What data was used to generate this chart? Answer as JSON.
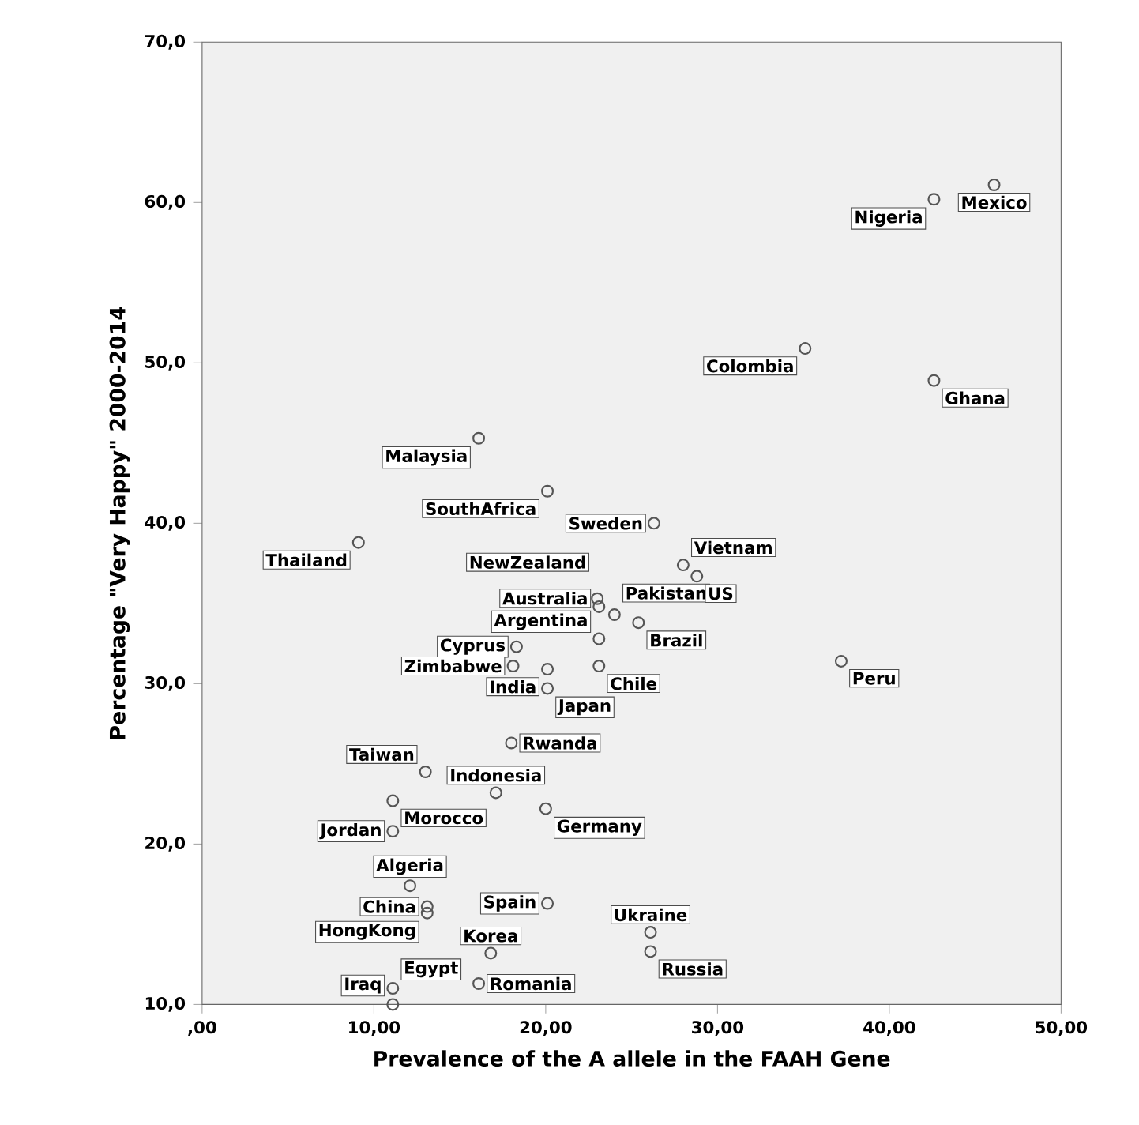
{
  "chart_data": {
    "type": "scatter",
    "xlabel": "Prevalence of the A allele in the FAAH Gene",
    "ylabel": "Percentage \"Very Happy\" 2000-2014",
    "xlim": [
      0,
      50
    ],
    "ylim": [
      10,
      70
    ],
    "xticks": [
      {
        "value": 0,
        "label": ",00"
      },
      {
        "value": 10,
        "label": "10,00"
      },
      {
        "value": 20,
        "label": "20,00"
      },
      {
        "value": 30,
        "label": "30,00"
      },
      {
        "value": 40,
        "label": "40,00"
      },
      {
        "value": 50,
        "label": "50,00"
      }
    ],
    "yticks": [
      {
        "value": 10,
        "label": "10,0"
      },
      {
        "value": 20,
        "label": "20,0"
      },
      {
        "value": 30,
        "label": "30,0"
      },
      {
        "value": 40,
        "label": "40,0"
      },
      {
        "value": 50,
        "label": "50,0"
      },
      {
        "value": 60,
        "label": "60,0"
      },
      {
        "value": 70,
        "label": "70,0"
      }
    ],
    "marker": "circle",
    "grid": false,
    "series": [
      {
        "color": "#555555",
        "x": [
          46.1,
          42.6,
          35.1,
          42.6,
          16.1,
          20.1,
          26.3,
          9.1,
          23.0,
          23.1,
          23.1,
          24.0,
          25.4,
          18.3,
          18.1,
          20.1,
          23.1,
          20.1,
          37.2,
          28.0,
          28.8,
          13.0,
          18.0,
          17.1,
          11.1,
          11.1,
          20.0,
          12.1,
          13.1,
          20.1,
          16.8,
          13.1,
          11.1,
          11.1,
          26.1,
          26.1,
          16.1
        ],
        "values": [
          61.1,
          60.2,
          50.9,
          48.9,
          45.3,
          42.0,
          40.0,
          38.8,
          35.3,
          34.8,
          32.8,
          34.3,
          33.8,
          32.3,
          31.1,
          30.9,
          31.1,
          29.7,
          31.4,
          37.4,
          36.7,
          24.5,
          26.3,
          23.2,
          22.7,
          20.8,
          22.2,
          17.4,
          16.1,
          16.3,
          13.2,
          15.7,
          11.0,
          10.0,
          14.5,
          13.3,
          11.3
        ]
      }
    ],
    "annotations": [
      {
        "text": "Mexico",
        "x": 46.1,
        "y": 61.1
      },
      {
        "text": "Nigeria",
        "x": 42.6,
        "y": 60.2
      },
      {
        "text": "Colombia",
        "x": 35.1,
        "y": 50.9
      },
      {
        "text": "Ghana",
        "x": 42.6,
        "y": 48.9
      },
      {
        "text": "Malaysia",
        "x": 16.1,
        "y": 45.3
      },
      {
        "text": "SouthAfrica",
        "x": 20.1,
        "y": 42.0
      },
      {
        "text": "Sweden",
        "x": 26.3,
        "y": 40.0
      },
      {
        "text": "Thailand",
        "x": 9.1,
        "y": 38.8
      },
      {
        "text": "NewZealand",
        "x": 23.0,
        "y": 35.3
      },
      {
        "text": "Australia",
        "x": 23.1,
        "y": 34.8
      },
      {
        "text": "Argentina",
        "x": 23.1,
        "y": 32.8
      },
      {
        "text": "Pakistan",
        "x": 24.0,
        "y": 34.3
      },
      {
        "text": "Brazil",
        "x": 25.4,
        "y": 33.8
      },
      {
        "text": "Cyprus",
        "x": 18.3,
        "y": 32.3
      },
      {
        "text": "Zimbabwe",
        "x": 18.1,
        "y": 31.1
      },
      {
        "text": "India",
        "x": 20.1,
        "y": 30.9
      },
      {
        "text": "Chile",
        "x": 23.1,
        "y": 31.1
      },
      {
        "text": "Japan",
        "x": 20.1,
        "y": 29.7
      },
      {
        "text": "Peru",
        "x": 37.2,
        "y": 31.4
      },
      {
        "text": "Vietnam",
        "x": 28.0,
        "y": 37.4
      },
      {
        "text": "US",
        "x": 28.8,
        "y": 36.7
      },
      {
        "text": "Taiwan",
        "x": 13.0,
        "y": 24.5
      },
      {
        "text": "Rwanda",
        "x": 18.0,
        "y": 26.3
      },
      {
        "text": "Indonesia",
        "x": 17.1,
        "y": 23.2
      },
      {
        "text": "Morocco",
        "x": 11.1,
        "y": 22.7
      },
      {
        "text": "Jordan",
        "x": 11.1,
        "y": 20.8
      },
      {
        "text": "Germany",
        "x": 20.0,
        "y": 22.2
      },
      {
        "text": "Algeria",
        "x": 12.1,
        "y": 17.4
      },
      {
        "text": "China",
        "x": 13.1,
        "y": 16.1
      },
      {
        "text": "Spain",
        "x": 20.1,
        "y": 16.3
      },
      {
        "text": "Korea",
        "x": 16.8,
        "y": 13.2
      },
      {
        "text": "HongKong",
        "x": 13.1,
        "y": 15.7
      },
      {
        "text": "Egypt",
        "x": 11.1,
        "y": 11.0
      },
      {
        "text": "Iraq",
        "x": 11.1,
        "y": 10.0
      },
      {
        "text": "Ukraine",
        "x": 26.1,
        "y": 14.5
      },
      {
        "text": "Russia",
        "x": 26.1,
        "y": 13.3
      },
      {
        "text": "Romania",
        "x": 16.1,
        "y": 11.3
      }
    ]
  }
}
